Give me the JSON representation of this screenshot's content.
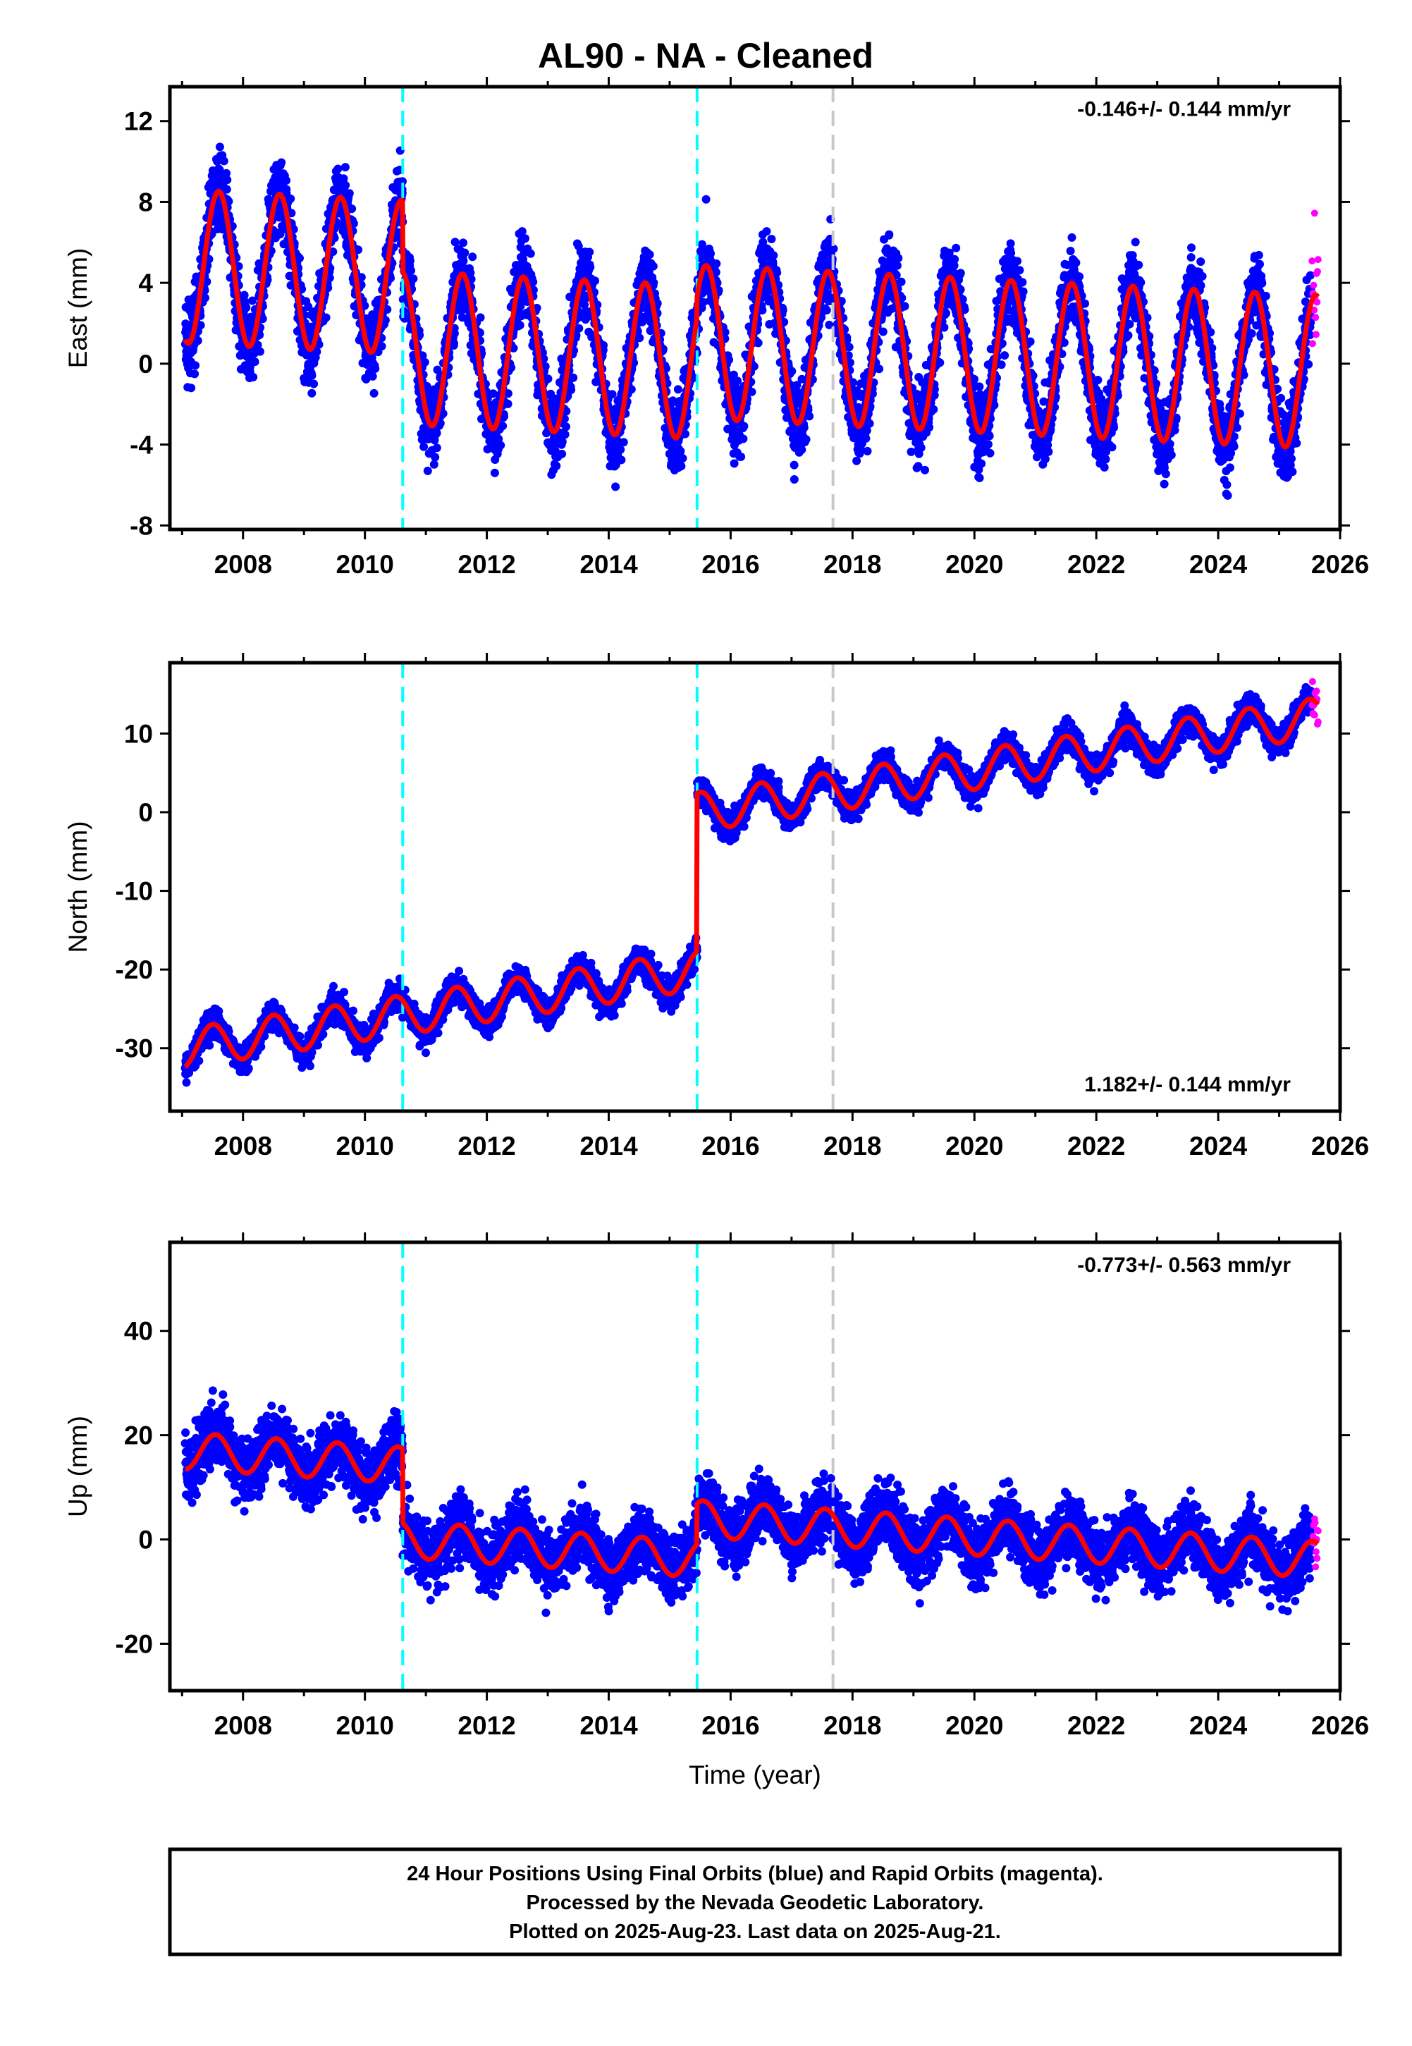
{
  "chart_data": [
    {
      "type": "scatter",
      "title": "AL90  - NA - Cleaned",
      "ylabel": "East (mm)",
      "xlabel": "",
      "rate_label": "-0.146+/- 0.144 mm/yr",
      "xlim": [
        2006.8,
        2026.0
      ],
      "ylim": [
        -8.2,
        13.7
      ],
      "yticks": [
        -8,
        -4,
        0,
        4,
        8,
        12
      ],
      "xticks": [
        2008,
        2010,
        2012,
        2014,
        2016,
        2018,
        2020,
        2022,
        2024,
        2026
      ],
      "grid": false,
      "series": [
        {
          "role": "final",
          "color": "#0000ff",
          "x_range": [
            2007.05,
            2025.52
          ]
        },
        {
          "role": "rapid",
          "color": "#ff00ff",
          "x_range": [
            2025.54,
            2025.64
          ]
        },
        {
          "role": "model",
          "color": "#ff0000",
          "amplitude": 3.8,
          "phase_peak": 0.6,
          "offsets": [
            {
              "x_range": [
                2007.05,
                2010.62
              ],
              "mean": 3.5
            },
            {
              "x_range": [
                2010.62,
                2015.45
              ],
              "mean": 0.0
            },
            {
              "x_range": [
                2015.45,
                2025.64
              ],
              "mean": 1.0
            }
          ],
          "trend": -0.146
        }
      ],
      "vlines": [
        {
          "x": 2010.62,
          "color": "#00ffff",
          "style": "dashed"
        },
        {
          "x": 2015.45,
          "color": "#00ffff",
          "style": "dashed"
        },
        {
          "x": 2017.68,
          "color": "#c8c8c8",
          "style": "dashed"
        }
      ]
    },
    {
      "type": "scatter",
      "ylabel": "North (mm)",
      "xlabel": "",
      "rate_label": "1.182+/- 0.144 mm/yr",
      "xlim": [
        2006.8,
        2026.0
      ],
      "ylim": [
        -38,
        19
      ],
      "yticks": [
        -30,
        -20,
        -10,
        0,
        10
      ],
      "xticks": [
        2008,
        2010,
        2012,
        2014,
        2016,
        2018,
        2020,
        2022,
        2024,
        2026
      ],
      "grid": false,
      "series": [
        {
          "role": "final",
          "color": "#0000ff",
          "x_range": [
            2007.05,
            2025.52
          ]
        },
        {
          "role": "rapid",
          "color": "#ff00ff",
          "x_range": [
            2025.54,
            2025.64
          ]
        },
        {
          "role": "model",
          "color": "#ff0000",
          "amplitude": 2.5,
          "phase_peak": 0.5,
          "offsets": [
            {
              "x_range": [
                2007.05,
                2015.45
              ],
              "start_value": -30.0
            },
            {
              "x_range": [
                2015.45,
                2025.64
              ],
              "start_value": 0.0
            }
          ],
          "trend": 1.182
        }
      ],
      "vlines": [
        {
          "x": 2010.62,
          "color": "#00ffff",
          "style": "dashed"
        },
        {
          "x": 2015.45,
          "color": "#00ffff",
          "style": "dashed"
        },
        {
          "x": 2017.68,
          "color": "#c8c8c8",
          "style": "dashed"
        }
      ]
    },
    {
      "type": "scatter",
      "ylabel": "Up (mm)",
      "xlabel": "Time (year)",
      "rate_label": "-0.773+/- 0.563 mm/yr",
      "xlim": [
        2006.8,
        2026.0
      ],
      "ylim": [
        -29,
        57
      ],
      "yticks": [
        -20,
        0,
        20,
        40
      ],
      "xticks": [
        2008,
        2010,
        2012,
        2014,
        2016,
        2018,
        2020,
        2022,
        2024,
        2026
      ],
      "grid": false,
      "series": [
        {
          "role": "final",
          "color": "#0000ff",
          "x_range": [
            2007.05,
            2025.52
          ]
        },
        {
          "role": "rapid",
          "color": "#ff00ff",
          "x_range": [
            2025.54,
            2025.64
          ]
        },
        {
          "role": "model",
          "color": "#ff0000",
          "amplitude": 3.5,
          "phase_peak": 0.55,
          "offsets": [
            {
              "x_range": [
                2007.05,
                2010.62
              ],
              "start_value": 17.0
            },
            {
              "x_range": [
                2010.62,
                2015.45
              ],
              "start_value": 0.0
            },
            {
              "x_range": [
                2015.45,
                2025.64
              ],
              "start_value": 4.0
            }
          ],
          "trend": -0.773
        }
      ],
      "vlines": [
        {
          "x": 2010.62,
          "color": "#00ffff",
          "style": "dashed"
        },
        {
          "x": 2015.45,
          "color": "#00ffff",
          "style": "dashed"
        },
        {
          "x": 2017.68,
          "color": "#c8c8c8",
          "style": "dashed"
        }
      ]
    }
  ],
  "footer": {
    "line1": "24 Hour Positions Using Final Orbits (blue) and Rapid Orbits (magenta).",
    "line2": "Processed by the Nevada Geodetic Laboratory.",
    "line3": "Plotted on 2025-Aug-23. Last data on 2025-Aug-21."
  }
}
